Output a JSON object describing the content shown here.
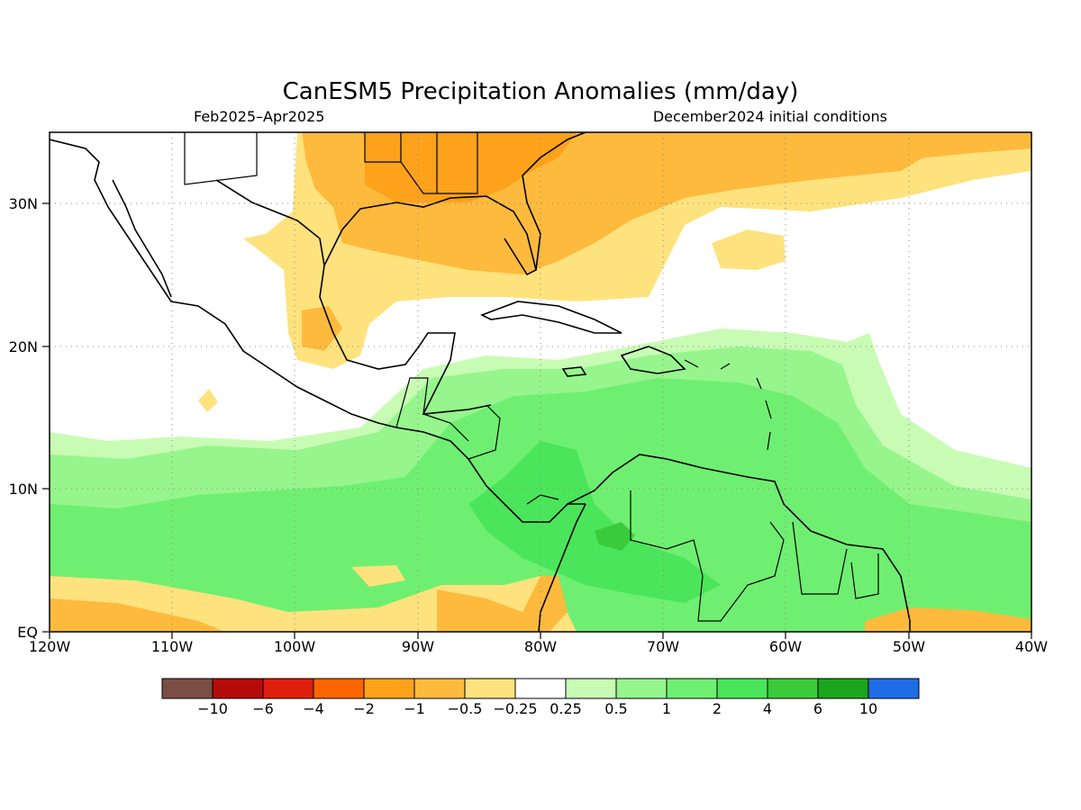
{
  "header": {
    "title": "CanESM5 Precipitation Anomalies (mm/day)",
    "period": "Feb2025–Apr2025",
    "init": "December2024 initial conditions"
  },
  "axes": {
    "lon_labels": [
      "120W",
      "110W",
      "100W",
      "90W",
      "80W",
      "70W",
      "60W",
      "50W",
      "40W"
    ],
    "lat_labels": [
      "EQ",
      "10N",
      "20N",
      "30N"
    ],
    "lon_range": [
      -120,
      -40
    ],
    "lat_range": [
      0,
      35
    ]
  },
  "legend": {
    "labels": [
      "−10",
      "−6",
      "−4",
      "−2",
      "−1",
      "−0.5",
      "−0.25",
      "0.25",
      "0.5",
      "1",
      "2",
      "4",
      "6",
      "10"
    ],
    "colors": [
      "#7a4e45",
      "#b40b0b",
      "#e01e0e",
      "#fb6500",
      "#fda21a",
      "#feba3c",
      "#fee27e",
      "#ffffff",
      "#c8fcb4",
      "#97f58d",
      "#6fef71",
      "#4ae55a",
      "#3acb3b",
      "#1aa51a",
      "#1f6de6"
    ]
  },
  "colors": {
    "dry_light": "#fee27e",
    "dry_mid": "#feba3c",
    "dry_strong": "#fda21a",
    "wet_light": "#c8fcb4",
    "wet_mid": "#97f58d",
    "wet_strong": "#6fef71",
    "wet_peak": "#4ae55a",
    "wet_max": "#3acb3b"
  }
}
